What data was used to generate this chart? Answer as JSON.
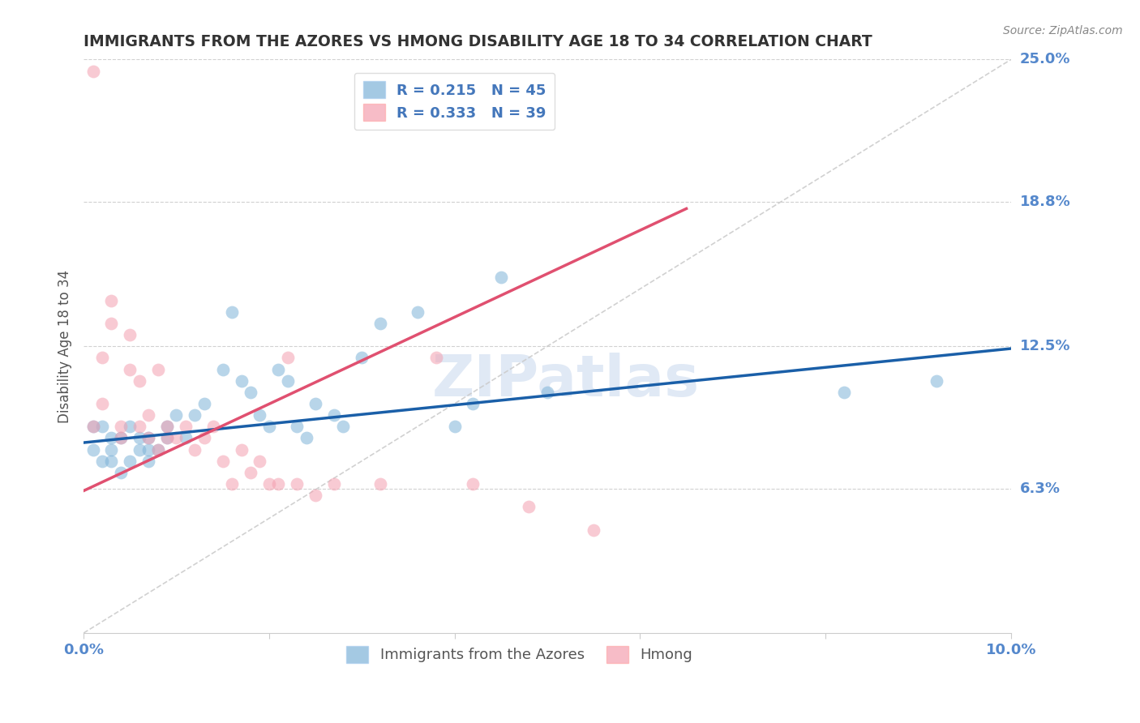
{
  "title": "IMMIGRANTS FROM THE AZORES VS HMONG DISABILITY AGE 18 TO 34 CORRELATION CHART",
  "source": "Source: ZipAtlas.com",
  "ylabel": "Disability Age 18 to 34",
  "xlim": [
    0.0,
    0.1
  ],
  "ylim": [
    0.0,
    0.25
  ],
  "ytick_positions": [
    0.063,
    0.125,
    0.188,
    0.25
  ],
  "ytick_labels": [
    "6.3%",
    "12.5%",
    "18.8%",
    "25.0%"
  ],
  "blue_R": 0.215,
  "blue_N": 45,
  "pink_R": 0.333,
  "pink_N": 39,
  "blue_color": "#7EB3D8",
  "pink_color": "#F4A0B0",
  "blue_line_color": "#1A5FA8",
  "pink_line_color": "#E05070",
  "ref_line_color": "#CCCCCC",
  "background_color": "#FFFFFF",
  "grid_color": "#CCCCCC",
  "title_color": "#333333",
  "axis_label_color": "#5588CC",
  "legend_text_color": "#4477BB",
  "blue_scatter_x": [
    0.001,
    0.001,
    0.002,
    0.002,
    0.003,
    0.003,
    0.003,
    0.004,
    0.004,
    0.005,
    0.005,
    0.006,
    0.006,
    0.007,
    0.007,
    0.007,
    0.008,
    0.009,
    0.009,
    0.01,
    0.011,
    0.012,
    0.013,
    0.015,
    0.016,
    0.017,
    0.018,
    0.019,
    0.02,
    0.021,
    0.022,
    0.023,
    0.024,
    0.025,
    0.027,
    0.028,
    0.03,
    0.032,
    0.036,
    0.04,
    0.042,
    0.045,
    0.05,
    0.082,
    0.092
  ],
  "blue_scatter_y": [
    0.09,
    0.08,
    0.075,
    0.09,
    0.075,
    0.08,
    0.085,
    0.07,
    0.085,
    0.075,
    0.09,
    0.08,
    0.085,
    0.075,
    0.08,
    0.085,
    0.08,
    0.085,
    0.09,
    0.095,
    0.085,
    0.095,
    0.1,
    0.115,
    0.14,
    0.11,
    0.105,
    0.095,
    0.09,
    0.115,
    0.11,
    0.09,
    0.085,
    0.1,
    0.095,
    0.09,
    0.12,
    0.135,
    0.14,
    0.09,
    0.1,
    0.155,
    0.105,
    0.105,
    0.11
  ],
  "pink_scatter_x": [
    0.001,
    0.001,
    0.002,
    0.002,
    0.003,
    0.003,
    0.004,
    0.004,
    0.005,
    0.005,
    0.006,
    0.006,
    0.007,
    0.007,
    0.008,
    0.008,
    0.009,
    0.009,
    0.01,
    0.011,
    0.012,
    0.013,
    0.014,
    0.015,
    0.016,
    0.017,
    0.018,
    0.019,
    0.02,
    0.021,
    0.022,
    0.023,
    0.025,
    0.027,
    0.032,
    0.038,
    0.042,
    0.048,
    0.055
  ],
  "pink_scatter_y": [
    0.245,
    0.09,
    0.1,
    0.12,
    0.135,
    0.145,
    0.085,
    0.09,
    0.115,
    0.13,
    0.11,
    0.09,
    0.085,
    0.095,
    0.115,
    0.08,
    0.09,
    0.085,
    0.085,
    0.09,
    0.08,
    0.085,
    0.09,
    0.075,
    0.065,
    0.08,
    0.07,
    0.075,
    0.065,
    0.065,
    0.12,
    0.065,
    0.06,
    0.065,
    0.065,
    0.12,
    0.065,
    0.055,
    0.045
  ],
  "blue_trendline_x": [
    0.0,
    0.1
  ],
  "blue_trendline_y": [
    0.083,
    0.124
  ],
  "pink_trendline_x": [
    0.0,
    0.065
  ],
  "pink_trendline_y": [
    0.062,
    0.185
  ]
}
